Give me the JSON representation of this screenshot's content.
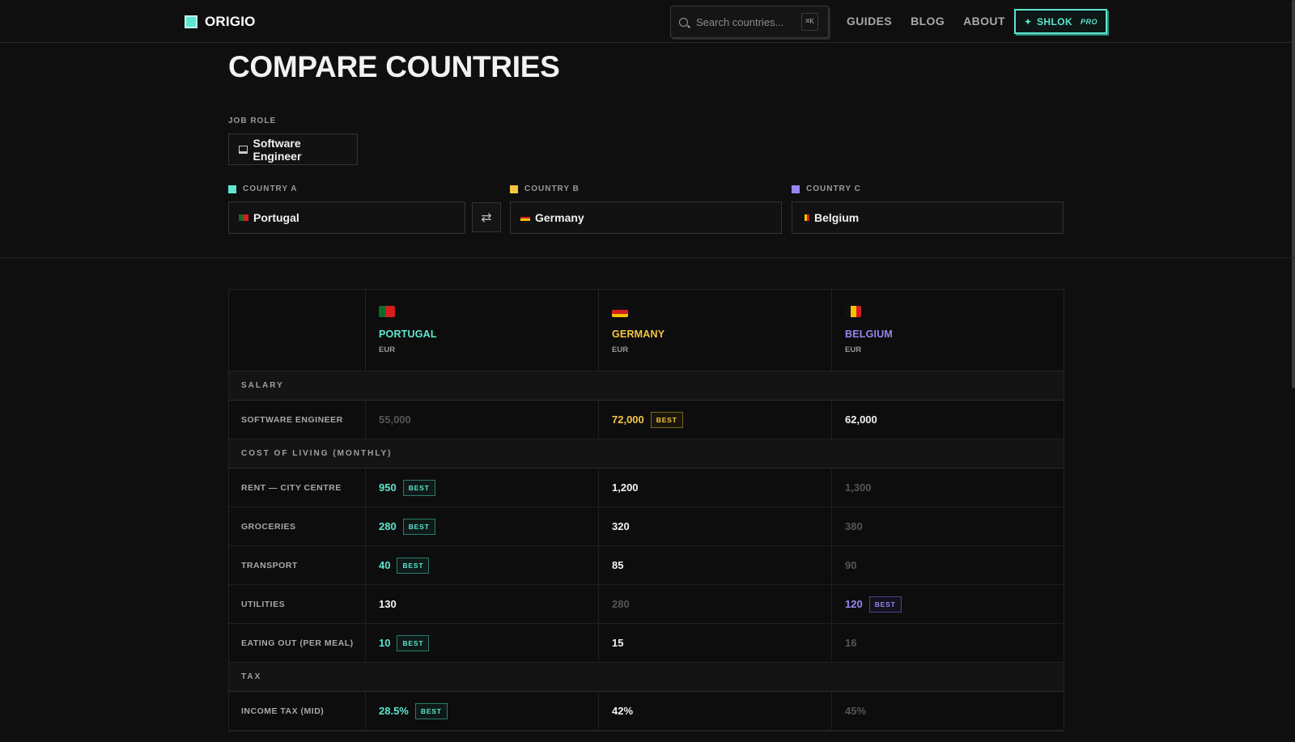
{
  "header": {
    "brand": "ORIGIO",
    "search_placeholder": "Search countries...",
    "search_shortcut": "⌘K",
    "nav": [
      "GUIDES",
      "BLOG",
      "ABOUT"
    ],
    "pro_button": {
      "name": "SHLOK",
      "tag": "PRO"
    }
  },
  "page": {
    "title": "COMPARE COUNTRIES",
    "job_role_label": "JOB ROLE",
    "job_role_value": "Software Engineer",
    "country_a_label": "COUNTRY A",
    "country_b_label": "COUNTRY B",
    "country_c_label": "COUNTRY C",
    "country_a_value": "Portugal",
    "country_b_value": "Germany",
    "country_c_value": "Belgium",
    "swap_icon": "⇄"
  },
  "colors": {
    "a": "#5ee6d0",
    "b": "#f5c542",
    "c": "#9a84f0"
  },
  "table": {
    "columns": [
      {
        "name": "PORTUGAL",
        "currency": "EUR"
      },
      {
        "name": "GERMANY",
        "currency": "EUR"
      },
      {
        "name": "BELGIUM",
        "currency": "EUR"
      }
    ],
    "best_label": "BEST",
    "groups": {
      "salary": "SALARY",
      "cost": "COST OF LIVING (MONTHLY)",
      "tax": "TAX"
    },
    "rows": {
      "software_engineer": {
        "label": "SOFTWARE ENGINEER",
        "a": "55,000",
        "b": "72,000",
        "c": "62,000"
      },
      "rent": {
        "label": "RENT — CITY CENTRE",
        "a": "950",
        "b": "1,200",
        "c": "1,300"
      },
      "groceries": {
        "label": "GROCERIES",
        "a": "280",
        "b": "320",
        "c": "380"
      },
      "transport": {
        "label": "TRANSPORT",
        "a": "40",
        "b": "85",
        "c": "90"
      },
      "utilities": {
        "label": "UTILITIES",
        "a": "130",
        "b": "280",
        "c": "120"
      },
      "eating_out": {
        "label": "EATING OUT (PER MEAL)",
        "a": "10",
        "b": "15",
        "c": "16"
      },
      "income_tax": {
        "label": "INCOME TAX (MID)",
        "a": "28.5%",
        "b": "42%",
        "c": "45%"
      }
    }
  }
}
